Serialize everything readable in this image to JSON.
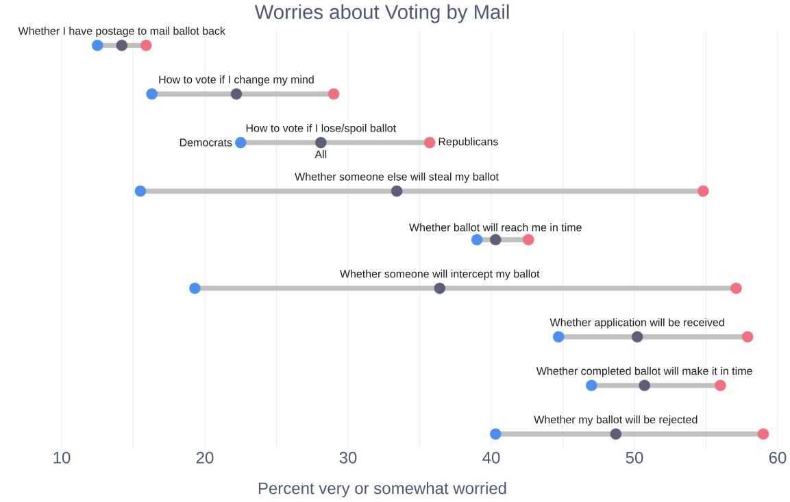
{
  "chart_data": {
    "type": "scatter",
    "orientation": "horizontal",
    "title": "Worries about Voting by Mail",
    "xlabel": "Percent very or somewhat worried",
    "categories": [
      "Whether I have postage to mail ballot back",
      "How to vote if I change my mind",
      "How to vote if I lose/spoil ballot",
      "Whether someone else will steal my ballot",
      "Whether ballot will reach me in time",
      "Whether someone will intercept my ballot",
      "Whether application will be received",
      "Whether completed ballot will make it in time",
      "Whether my ballot will be rejected"
    ],
    "series": [
      {
        "name": "Democrats",
        "color": "#4a90f0",
        "values": [
          12.5,
          16.3,
          22.5,
          15.5,
          39.0,
          19.3,
          44.7,
          47.0,
          40.3
        ]
      },
      {
        "name": "All",
        "color": "#5b6078",
        "values": [
          14.2,
          22.2,
          28.1,
          33.4,
          40.3,
          36.4,
          50.2,
          50.7,
          48.7
        ]
      },
      {
        "name": "Republicans",
        "color": "#f0707f",
        "values": [
          15.9,
          29.0,
          35.7,
          54.8,
          42.6,
          57.1,
          57.9,
          56.0,
          59.0
        ]
      }
    ],
    "xlim": [
      10,
      60
    ],
    "xticks": [
      10,
      {
        "value": 15,
        "label": null
      },
      20,
      {
        "value": 25,
        "label": null
      },
      30,
      {
        "value": 35,
        "label": null
      },
      40,
      {
        "value": 45,
        "label": null
      },
      50,
      {
        "value": 55,
        "label": null
      },
      60
    ],
    "grid": "x",
    "marker": "circle"
  }
}
